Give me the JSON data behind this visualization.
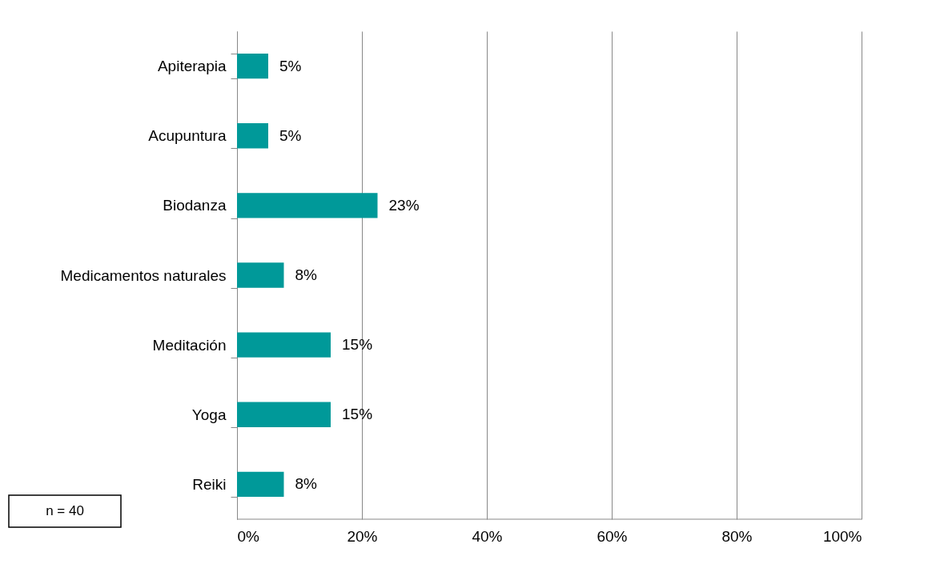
{
  "chart_data": {
    "type": "bar",
    "orientation": "horizontal",
    "categories": [
      "Apiterapia",
      "Acupuntura",
      "Biodanza",
      "Medicamentos naturales",
      "Meditación",
      "Yoga",
      "Reiki"
    ],
    "values": [
      5,
      5,
      22.5,
      7.5,
      15,
      15,
      7.5
    ],
    "value_labels": [
      "5%",
      "5%",
      "23%",
      "8%",
      "15%",
      "15%",
      "8%"
    ],
    "color": "#009999",
    "xlim": [
      0,
      100
    ],
    "xticks": [
      {
        "value": 0,
        "label": "0%"
      },
      {
        "value": 20,
        "label": "20%"
      },
      {
        "value": 40,
        "label": "40%"
      },
      {
        "value": 60,
        "label": "60%"
      },
      {
        "value": 80,
        "label": "80%"
      },
      {
        "value": 100,
        "label": "100%"
      }
    ],
    "grid": "x",
    "annotations": [
      "n = 40"
    ]
  }
}
